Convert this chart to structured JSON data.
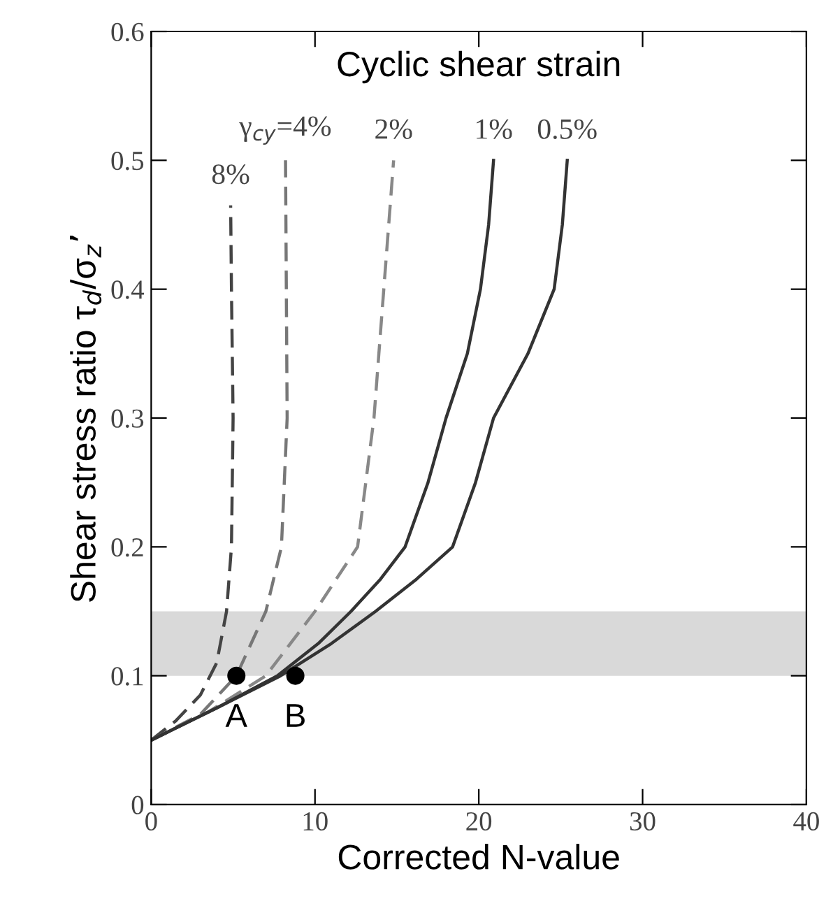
{
  "chart_data": {
    "type": "line",
    "title": "Cyclic shear strain",
    "xlabel": "Corrected N-value",
    "ylabel": "Shear stress ratio τ$_{d}$/σ$_{z}$’",
    "xlim": [
      0,
      40
    ],
    "xticks": [
      0,
      10,
      20,
      30,
      40
    ],
    "ylim": [
      0,
      0.6
    ],
    "yticks": [
      0,
      0.1,
      0.2,
      0.3,
      0.4,
      0.5,
      0.6
    ],
    "grid": false,
    "legend": false,
    "series": [
      {
        "name": "8%",
        "color": "#444444",
        "line_style": "dashed",
        "x": [
          0,
          1.5,
          3,
          4,
          4.6,
          4.9,
          5.0,
          4.9,
          4.85
        ],
        "values": [
          0.05,
          0.065,
          0.085,
          0.11,
          0.15,
          0.2,
          0.3,
          0.4,
          0.465
        ]
      },
      {
        "name": "γ$_{cy}$=4%",
        "color": "#777777",
        "line_style": "dashed",
        "x": [
          0,
          3,
          5.2,
          7.0,
          7.95,
          8.3,
          8.2
        ],
        "values": [
          0.05,
          0.07,
          0.1,
          0.15,
          0.2,
          0.3,
          0.5
        ]
      },
      {
        "name": "2%",
        "color": "#888888",
        "line_style": "dashed",
        "x": [
          0,
          3.5,
          7.0,
          10.0,
          12.6,
          13.6,
          14.8
        ],
        "values": [
          0.05,
          0.072,
          0.1,
          0.15,
          0.2,
          0.3,
          0.5
        ]
      },
      {
        "name": "1%",
        "color": "#333333",
        "line_style": "solid",
        "x": [
          0,
          4,
          7.7,
          10.2,
          12.2,
          14.0,
          15.5,
          16.9,
          18.0,
          19.3,
          20.1,
          20.6,
          20.9
        ],
        "values": [
          0.05,
          0.075,
          0.1,
          0.125,
          0.15,
          0.175,
          0.2,
          0.25,
          0.3,
          0.35,
          0.4,
          0.45,
          0.5
        ]
      },
      {
        "name": "0.5%",
        "color": "#333333",
        "line_style": "solid",
        "x": [
          0,
          4,
          7.9,
          11.0,
          13.7,
          16.2,
          18.4,
          19.8,
          20.9,
          23.0,
          24.6,
          25.1,
          25.4
        ],
        "values": [
          0.05,
          0.075,
          0.1,
          0.125,
          0.15,
          0.175,
          0.2,
          0.25,
          0.3,
          0.35,
          0.4,
          0.45,
          0.5
        ]
      },
      {
        "type": "scatter",
        "marker": "circle",
        "color": "#000000",
        "x": [
          5.2,
          8.8
        ],
        "values": [
          0.1,
          0.1
        ]
      }
    ],
    "bands": [
      {
        "axis": "y",
        "from": 0.1,
        "to": 0.15,
        "color": "#d9d9d9"
      }
    ],
    "annotations": [
      {
        "text": "A",
        "x": 5.2,
        "y": 0.1
      },
      {
        "text": "B",
        "x": 8.8,
        "y": 0.1
      }
    ]
  }
}
